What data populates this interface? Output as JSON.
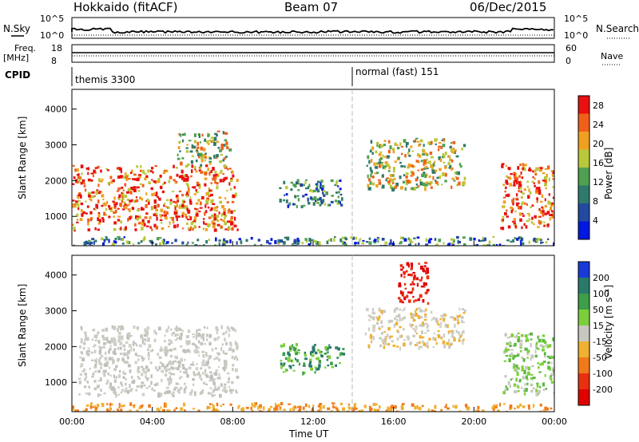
{
  "header": {
    "station": "Hokkaido (fitACF)",
    "beam": "Beam 07",
    "date": "06/Dec/2015"
  },
  "status_panels": {
    "nsky_label": "N.Sky",
    "nsky_ticks": [
      "10^5",
      "10^0"
    ],
    "nsearch_label": "N.Search",
    "nsearch_ticks": [
      "10^5",
      "10^0"
    ],
    "freq_label": "Freq.",
    "freq_unit": "[MHz]",
    "freq_ticks": [
      "18",
      "8"
    ],
    "nave_label": "Nave",
    "nave_ticks": [
      "60",
      "0"
    ],
    "cpid_label": "CPID",
    "cpid_modes": [
      {
        "name": "themis 3300",
        "start_hour": 0
      },
      {
        "name": "normal (fast) 151",
        "start_hour": 14.0
      }
    ]
  },
  "chart_data": [
    {
      "type": "heatmap",
      "title": "",
      "xlabel": "",
      "ylabel": "Slant Range [km]",
      "x_ticks": [
        "00:00",
        "04:00",
        "08:00",
        "12:00",
        "16:00",
        "20:00",
        "00:00"
      ],
      "xlim_hours": [
        0,
        24
      ],
      "y_ticks": [
        1000,
        2000,
        3000,
        4000
      ],
      "ylim": [
        180,
        4550
      ],
      "data_gap_hours": [
        8.4,
        8.6
      ],
      "colorbar": {
        "label": "Power [dB]",
        "ticks": [
          4,
          8,
          12,
          16,
          20,
          24,
          28
        ],
        "range": [
          0,
          30
        ],
        "colors": [
          "#0018e0",
          "#234a9e",
          "#2f7a6a",
          "#4fa050",
          "#b8c83a",
          "#f0a020",
          "#f06018",
          "#e81010"
        ]
      },
      "echo_regions": [
        {
          "t": [
            0.0,
            8.2
          ],
          "r": [
            650,
            2450
          ],
          "level": "high"
        },
        {
          "t": [
            5.2,
            7.8
          ],
          "r": [
            2450,
            3400
          ],
          "level": "mixed"
        },
        {
          "t": [
            10.3,
            13.4
          ],
          "r": [
            1300,
            2050
          ],
          "level": "low"
        },
        {
          "t": [
            14.6,
            19.5
          ],
          "r": [
            1800,
            3200
          ],
          "level": "mixed"
        },
        {
          "t": [
            21.3,
            24.0
          ],
          "r": [
            700,
            2500
          ],
          "level": "high"
        },
        {
          "t": [
            0.0,
            24.0
          ],
          "r": [
            200,
            450
          ],
          "level": "low"
        }
      ]
    },
    {
      "type": "heatmap",
      "title": "",
      "xlabel": "Time UT",
      "ylabel": "Slant Range [km]",
      "x_ticks": [
        "00:00",
        "04:00",
        "08:00",
        "12:00",
        "16:00",
        "20:00",
        "00:00"
      ],
      "xlim_hours": [
        0,
        24
      ],
      "y_ticks": [
        1000,
        2000,
        3000,
        4000
      ],
      "ylim": [
        180,
        4550
      ],
      "colorbar": {
        "label": "Velocity [m s⁻¹]",
        "ticks": [
          200,
          100,
          50,
          15,
          -15,
          -50,
          -100,
          -200
        ],
        "colors": [
          "#1a3ad8",
          "#2a7a6a",
          "#3e9e4a",
          "#7ccf3a",
          "#c8c8c0",
          "#f0b030",
          "#f07a1a",
          "#e83010",
          "#e00000"
        ]
      },
      "echo_regions": [
        {
          "t": [
            0.3,
            8.2
          ],
          "r": [
            650,
            2600
          ],
          "color": "ground-scatter-grey"
        },
        {
          "t": [
            10.3,
            13.5
          ],
          "r": [
            1300,
            2100
          ],
          "color": "green"
        },
        {
          "t": [
            14.5,
            19.5
          ],
          "r": [
            2000,
            3100
          ],
          "color": "grey"
        },
        {
          "t": [
            21.4,
            24.0
          ],
          "r": [
            700,
            2400
          ],
          "color": "light-green"
        },
        {
          "t": [
            16.2,
            17.7
          ],
          "r": [
            3200,
            4400
          ],
          "color": "red"
        },
        {
          "t": [
            0.0,
            24.0
          ],
          "r": [
            200,
            450
          ],
          "color": "orange"
        }
      ]
    }
  ]
}
